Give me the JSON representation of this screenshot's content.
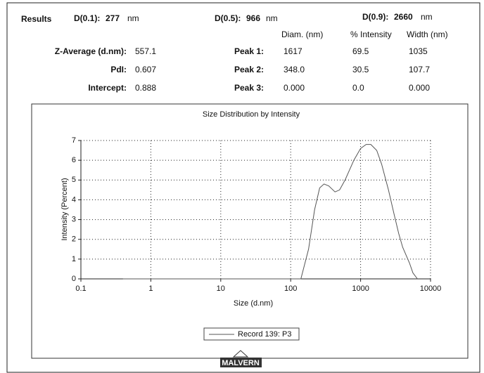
{
  "header": {
    "title": "Results",
    "d10": {
      "label": "D(0.1):",
      "value": "277",
      "unit": "nm"
    },
    "d50": {
      "label": "D(0.5):",
      "value": "966",
      "unit": "nm"
    },
    "d90": {
      "label": "D(0.9):",
      "value": "2660",
      "unit": "nm"
    }
  },
  "table": {
    "columns": [
      "Diam. (nm)",
      "% Intensity",
      "Width (nm)"
    ],
    "left_rows": [
      [
        "Z-Average (d.nm):",
        "557.1"
      ],
      [
        "PdI:",
        "0.607"
      ],
      [
        "Intercept:",
        "0.888"
      ]
    ],
    "peak_rows": [
      [
        "Peak 1:",
        "1617",
        "69.5",
        "1035"
      ],
      [
        "Peak 2:",
        "348.0",
        "30.5",
        "107.7"
      ],
      [
        "Peak 3:",
        "0.000",
        "0.0",
        "0.000"
      ]
    ]
  },
  "chart_data": {
    "type": "line",
    "title": "Size Distribution by Intensity",
    "x_label": "Size (d.nm)",
    "y_label": "Intensity (Percent)",
    "log_x": true,
    "grid": true,
    "xlim": [
      0.1,
      10000
    ],
    "ylim": [
      0,
      7
    ],
    "xticks": [
      0.1,
      1,
      10,
      100,
      1000,
      10000
    ],
    "yticks": [
      0,
      1,
      2,
      3,
      4,
      5,
      6,
      7
    ],
    "x": [
      0.4,
      100,
      140,
      180,
      220,
      260,
      300,
      350,
      430,
      500,
      600,
      800,
      1000,
      1200,
      1400,
      1700,
      2000,
      2500,
      3000,
      3500,
      4000,
      5000,
      5600,
      6500
    ],
    "series": [
      {
        "name": "Record 139: P3",
        "color": "#555555",
        "values": [
          0,
          0,
          0,
          1.5,
          3.5,
          4.6,
          4.8,
          4.7,
          4.4,
          4.5,
          5.0,
          6.0,
          6.6,
          6.8,
          6.8,
          6.5,
          5.8,
          4.5,
          3.3,
          2.3,
          1.6,
          0.8,
          0.3,
          0
        ]
      }
    ]
  },
  "footer": {
    "logo": "MALVERN"
  }
}
